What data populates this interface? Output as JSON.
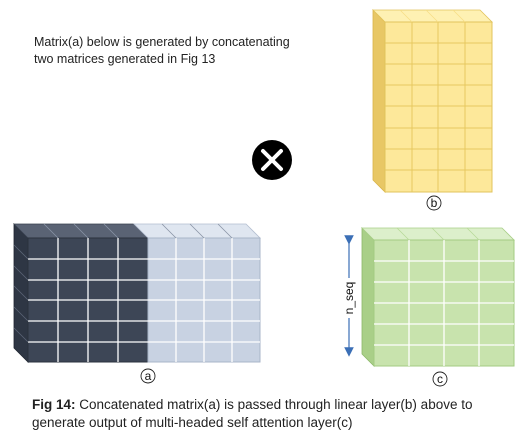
{
  "intro": {
    "line1": "Matrix(a) below is generated by concatenating",
    "line2": "two matrices generated in Fig 13"
  },
  "labels": {
    "a": "a",
    "b": "b",
    "c": "c",
    "n_seq": "n_seq"
  },
  "operator_symbol": "×",
  "caption": {
    "fig_label": "Fig 14:",
    "line1": " Concatenated matrix(a) is passed through linear layer(b) above to",
    "line2": "generate output of multi-headed self attention layer(c)"
  },
  "colors": {
    "matrix_a_left": "#3d4656",
    "matrix_a_right": "#c8d2e2",
    "matrix_b": "#fde89a",
    "matrix_c": "#c8e3ad",
    "operator": "#000000"
  }
}
